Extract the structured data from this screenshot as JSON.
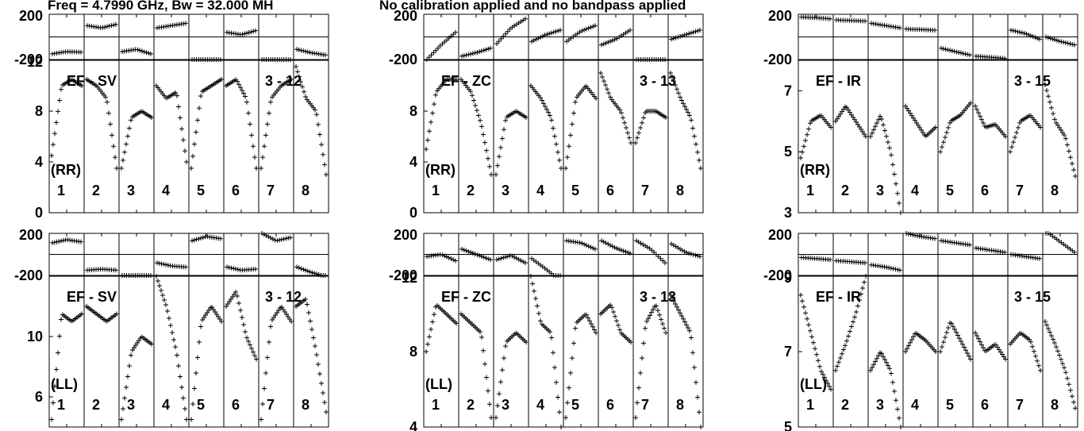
{
  "header": {
    "freq_text": "Freq = 4.7990 GHz, Bw = 32.000 MH",
    "cal_text": "No calibration applied and no bandpass applied"
  },
  "chart_data": [
    {
      "type": "line",
      "baseline": "EF - SV",
      "polarization": "(RR)",
      "scan": "3 - 12",
      "channels": [
        "1",
        "2",
        "3",
        "4",
        "5",
        "6",
        "7",
        "8"
      ],
      "phase": {
        "ylim": [
          -200,
          200
        ],
        "ticks": [
          "200",
          "-200"
        ],
        "series": [
          [
            -150,
            -130,
            -135
          ],
          [
            100,
            80,
            110
          ],
          [
            -130,
            -110,
            -150
          ],
          [
            80,
            100,
            120
          ],
          [
            -240,
            -230,
            -240
          ],
          [
            40,
            20,
            55
          ],
          [
            -230,
            -220,
            -240
          ],
          [
            -110,
            -140,
            -160
          ]
        ]
      },
      "amplitude": {
        "ylim": [
          0,
          12
        ],
        "ticks": [
          "12",
          "8",
          "4",
          "0"
        ],
        "series": [
          [
            4.5,
            10,
            10.5,
            10
          ],
          [
            10.5,
            10,
            9,
            3.5
          ],
          [
            3.5,
            7.5,
            8,
            7.5
          ],
          [
            10,
            9,
            9.5,
            4
          ],
          [
            3.5,
            9.5,
            10,
            10.5
          ],
          [
            10,
            10.5,
            9,
            3.5
          ],
          [
            3.5,
            9,
            10,
            10.5
          ],
          [
            11.5,
            9,
            8,
            3
          ]
        ]
      }
    },
    {
      "type": "line",
      "baseline": "EF - SV",
      "polarization": "(LL)",
      "scan": "3 - 12",
      "channels": [
        "1",
        "2",
        "3",
        "4",
        "5",
        "6",
        "7",
        "8"
      ],
      "phase": {
        "ylim": [
          -200,
          200
        ],
        "ticks": [
          "200",
          "-200"
        ],
        "series": [
          [
            110,
            140,
            120
          ],
          [
            -150,
            -140,
            -150
          ],
          [
            -230,
            -240,
            -230
          ],
          [
            -80,
            -110,
            -120
          ],
          [
            130,
            170,
            150
          ],
          [
            -120,
            -150,
            -140
          ],
          [
            200,
            130,
            160
          ],
          [
            -120,
            -170,
            -210
          ]
        ]
      },
      "amplitude": {
        "ylim": [
          4,
          14
        ],
        "ticks": [
          "10",
          "6"
        ],
        "series": [
          [
            4.5,
            11.5,
            11,
            11.5
          ],
          [
            12,
            11.5,
            11,
            11.5
          ],
          [
            4.5,
            9,
            10,
            9.5
          ],
          [
            14,
            12,
            9,
            4.5
          ],
          [
            4.5,
            11,
            12,
            11
          ],
          [
            12,
            13,
            10,
            8.5
          ],
          [
            4.5,
            11,
            12,
            11
          ],
          [
            12,
            12.5,
            9,
            5
          ]
        ]
      }
    },
    {
      "type": "line",
      "baseline": "EF - ZC",
      "polarization": "(RR)",
      "scan": "3 - 13",
      "channels": [
        "1",
        "2",
        "3",
        "4",
        "5",
        "6",
        "7",
        "8"
      ],
      "phase": {
        "ylim": [
          -200,
          200
        ],
        "ticks": [
          "200",
          "-200"
        ],
        "series": [
          [
            -200,
            -70,
            40
          ],
          [
            -170,
            -140,
            -100
          ],
          [
            -60,
            80,
            160
          ],
          [
            -40,
            20,
            60
          ],
          [
            -40,
            50,
            100
          ],
          [
            -70,
            -20,
            60
          ],
          [
            -230,
            -240,
            -230
          ],
          [
            -20,
            20,
            60
          ]
        ]
      },
      "amplitude": {
        "ylim": [
          0,
          12
        ],
        "ticks": [
          "8",
          "4",
          "0"
        ],
        "series": [
          [
            5,
            9.5,
            10.5,
            10.5
          ],
          [
            10.5,
            9.5,
            7,
            3
          ],
          [
            3,
            7.5,
            8,
            7.5
          ],
          [
            10,
            9,
            7.5,
            3.5
          ],
          [
            3.5,
            9,
            10,
            9
          ],
          [
            11,
            9,
            8,
            5.5
          ],
          [
            5.5,
            8,
            8,
            7.5
          ],
          [
            11,
            9,
            7.5,
            3.5
          ]
        ]
      }
    },
    {
      "type": "line",
      "baseline": "EF - ZC",
      "polarization": "(LL)",
      "scan": "3 - 13",
      "channels": [
        "1",
        "2",
        "3",
        "4",
        "5",
        "6",
        "7",
        "8"
      ],
      "phase": {
        "ylim": [
          -200,
          200
        ],
        "ticks": [
          "200",
          "-200"
        ],
        "series": [
          [
            -20,
            0,
            -60
          ],
          [
            50,
            0,
            -50
          ],
          [
            -50,
            -10,
            -80
          ],
          [
            -40,
            -140,
            -250
          ],
          [
            130,
            110,
            50
          ],
          [
            130,
            60,
            10
          ],
          [
            130,
            50,
            -80
          ],
          [
            100,
            20,
            -20
          ]
        ]
      },
      "amplitude": {
        "ylim": [
          4,
          12
        ],
        "ticks": [
          "12",
          "8",
          "4"
        ],
        "series": [
          [
            8,
            10.5,
            10,
            9.5
          ],
          [
            10,
            9.5,
            9,
            4.5
          ],
          [
            4.5,
            8.5,
            9,
            8.5
          ],
          [
            12,
            9.5,
            9,
            4
          ],
          [
            4.5,
            9.5,
            10,
            9
          ],
          [
            10,
            10.5,
            9,
            8.5
          ],
          [
            4.5,
            9.5,
            10.5,
            9
          ],
          [
            11,
            10,
            9,
            4
          ]
        ]
      }
    },
    {
      "type": "line",
      "baseline": "EF - IR",
      "polarization": "(RR)",
      "scan": "3 - 15",
      "channels": [
        "1",
        "2",
        "3",
        "4",
        "5",
        "6",
        "7",
        "8"
      ],
      "phase": {
        "ylim": [
          -200,
          200
        ],
        "ticks": [
          "200",
          "-200"
        ],
        "series": [
          [
            175,
            170,
            160
          ],
          [
            150,
            145,
            140
          ],
          [
            120,
            100,
            80
          ],
          [
            70,
            65,
            60
          ],
          [
            -100,
            -130,
            -160
          ],
          [
            -170,
            -180,
            -190
          ],
          [
            60,
            30,
            -20
          ],
          [
            0,
            -40,
            -70
          ]
        ]
      },
      "amplitude": {
        "ylim": [
          3,
          8
        ],
        "ticks": [
          "7",
          "5",
          "3"
        ],
        "series": [
          [
            4.8,
            6,
            6.2,
            5.8
          ],
          [
            6,
            6.5,
            6,
            5.5
          ],
          [
            5.5,
            6.2,
            5,
            3
          ],
          [
            6.5,
            6,
            5.5,
            5.8
          ],
          [
            5,
            6,
            6.2,
            6.6
          ],
          [
            6.5,
            5.8,
            5.9,
            5.5
          ],
          [
            5,
            6,
            6.2,
            5.8
          ],
          [
            7.2,
            6,
            5.5,
            4.2
          ]
        ]
      }
    },
    {
      "type": "line",
      "baseline": "EF - IR",
      "polarization": "(LL)",
      "scan": "3 - 15",
      "channels": [
        "1",
        "2",
        "3",
        "4",
        "5",
        "6",
        "7",
        "8"
      ],
      "phase": {
        "ylim": [
          -200,
          200
        ],
        "ticks": [
          "200",
          "-200"
        ],
        "series": [
          [
            -30,
            -40,
            -50
          ],
          [
            -60,
            -70,
            -80
          ],
          [
            -100,
            -120,
            -150
          ],
          [
            200,
            170,
            150
          ],
          [
            130,
            110,
            90
          ],
          [
            60,
            40,
            20
          ],
          [
            0,
            -20,
            -40
          ],
          [
            220,
            120,
            20
          ]
        ]
      },
      "amplitude": {
        "ylim": [
          5,
          9
        ],
        "ticks": [
          "9",
          "7",
          "5"
        ],
        "series": [
          [
            8.5,
            7.5,
            6.5,
            6
          ],
          [
            6.5,
            7.2,
            8,
            9
          ],
          [
            6.5,
            7,
            6.5,
            5
          ]
        ],
        "more": [
          [
            7,
            7.5,
            7.3,
            7
          ],
          [
            7,
            7.8,
            7.3,
            6.8
          ],
          [
            7.5,
            7,
            7.2,
            6.8
          ],
          [
            7.2,
            7.5,
            7.3,
            6.5
          ],
          [
            7.8,
            7.2,
            6.5,
            5.5
          ]
        ]
      }
    }
  ]
}
